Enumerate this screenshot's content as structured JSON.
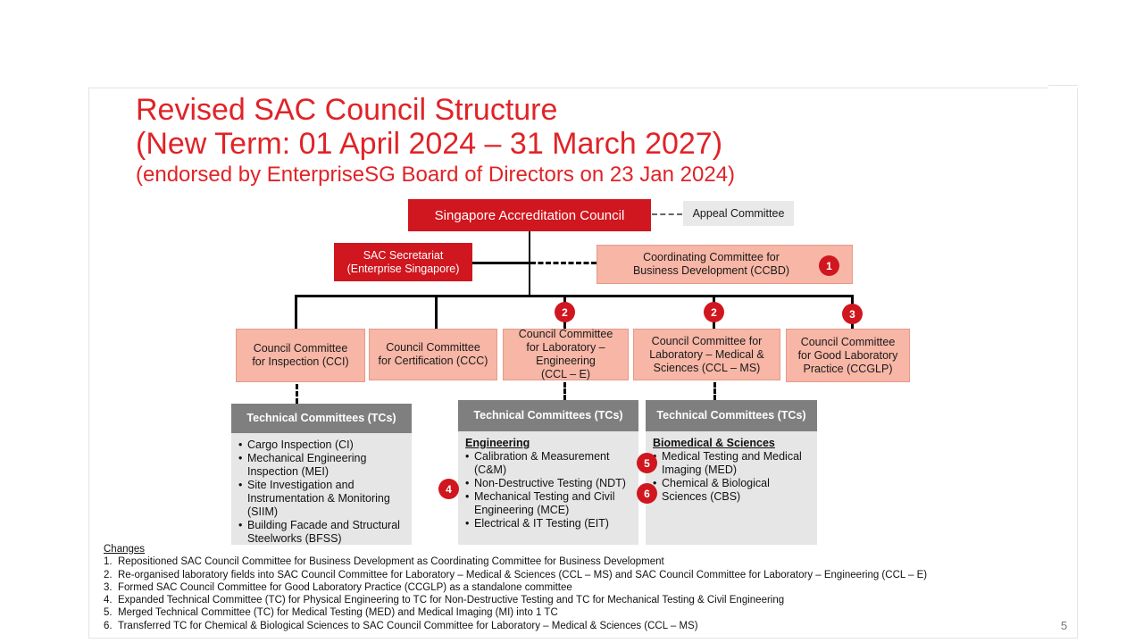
{
  "title": {
    "line1": "Revised SAC Council Structure",
    "line2": "(New Term: 01 April 2024 – 31 March 2027)",
    "line3": "(endorsed by EnterpriseSG Board of Directors on 23 Jan 2024)"
  },
  "org": {
    "council": "Singapore Accreditation Council",
    "appeal": "Appeal Committee",
    "secretariat_l1": "SAC Secretariat",
    "secretariat_l2": "(Enterprise Singapore)",
    "ccbd_l1": "Coordinating Committee for",
    "ccbd_l2": "Business Development (CCBD)",
    "cci_l1": "Council Committee",
    "cci_l2": "for Inspection (CCI)",
    "ccc_l1": "Council Committee",
    "ccc_l2": "for Certification (CCC)",
    "ccle_l1": "Council Committee",
    "ccle_l2": "for Laboratory –",
    "ccle_l3": "Engineering",
    "ccle_l4": "(CCL – E)",
    "cclms_l1": "Council Committee for",
    "cclms_l2": "Laboratory – Medical &",
    "cclms_l3": "Sciences (CCL – MS)",
    "ccglp_l1": "Council Committee",
    "ccglp_l2": "for Good Laboratory",
    "ccglp_l3": "Practice (CCGLP)"
  },
  "badges": {
    "ccbd": "1",
    "ccle": "2",
    "cclms": "2",
    "ccglp": "3",
    "ndt": "4",
    "med": "5",
    "cbs": "6"
  },
  "tc_inspection": {
    "header": "Technical Committees (TCs)",
    "items": [
      "Cargo Inspection (CI)",
      "Mechanical Engineering Inspection (MEI)",
      "Site Investigation and Instrumentation & Monitoring (SIIM)",
      "Building Facade and Structural Steelworks (BFSS)"
    ]
  },
  "tc_engineering": {
    "header": "Technical Committees (TCs)",
    "subheading": "Engineering",
    "items": [
      "Calibration & Measurement (C&M)",
      "Non-Destructive Testing (NDT)",
      "Mechanical Testing and Civil Engineering (MCE)",
      "Electrical & IT Testing (EIT)"
    ]
  },
  "tc_medical": {
    "header": "Technical Committees (TCs)",
    "subheading": "Biomedical & Sciences",
    "items": [
      "Medical Testing and Medical Imaging (MED)",
      "Chemical & Biological Sciences (CBS)"
    ]
  },
  "changes": {
    "heading": "Changes",
    "items": [
      "Repositioned SAC Council Committee for Business Development as Coordinating Committee for Business Development",
      "Re-organised laboratory fields into SAC Council Committee for Laboratory – Medical & Sciences (CCL – MS) and SAC Council Committee for Laboratory – Engineering (CCL – E)",
      "Formed SAC Council Committee for Good Laboratory Practice (CCGLP) as a standalone committee",
      "Expanded Technical Committee (TC) for Physical Engineering to TC for Non-Destructive Testing and TC for Mechanical Testing & Civil Engineering",
      "Merged Technical Committee (TC) for Medical Testing (MED) and Medical Imaging (MI) into 1 TC",
      "Transferred TC for Chemical & Biological Sciences to SAC Council Committee for Laboratory – Medical & Sciences (CCL – MS)"
    ],
    "numbers": [
      "1.",
      "2.",
      "3.",
      "4.",
      "5.",
      "6."
    ]
  },
  "page_number": "5",
  "colors": {
    "accent_red": "#d0161e",
    "title_red": "#e02327",
    "committee_pink": "#f7b6a6",
    "tc_header_grey": "#7f7f7f",
    "tc_body_grey": "#e6e6e6"
  }
}
